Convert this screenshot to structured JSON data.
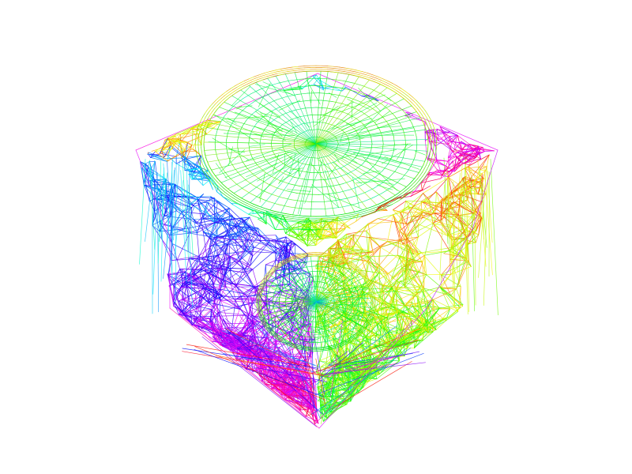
{
  "scene": {
    "background": "#ffffff",
    "render_mode": "wireframe",
    "coloring": "rainbow-hue-per-edge",
    "object": {
      "name": "wireframe-cube-mesh",
      "features": [
        {
          "name": "top-dish",
          "shape": "radial-disc"
        },
        {
          "name": "front-dish",
          "shape": "radial-disc"
        }
      ]
    },
    "palette": [
      "#ff0000",
      "#ff00ff",
      "#0000ff",
      "#00ffff",
      "#00ff00",
      "#ffff00",
      "#ff8800"
    ]
  }
}
